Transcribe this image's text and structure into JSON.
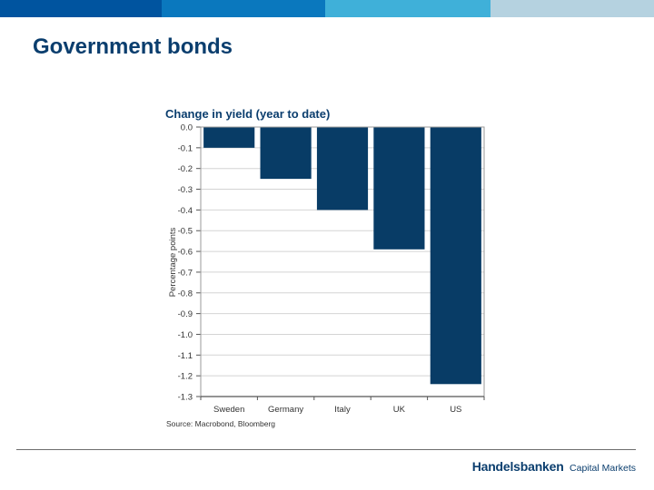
{
  "slide": {
    "title": "Government bonds",
    "header_bar_colors": [
      "#00549f",
      "#0a78be",
      "#3fb0d9",
      "#b5d2e0"
    ]
  },
  "chart_data": {
    "type": "bar",
    "title": "Change in yield (year to date)",
    "ylabel": "Percentage points",
    "xlabel": "",
    "categories": [
      "Sweden",
      "Germany",
      "Italy",
      "UK",
      "US"
    ],
    "values": [
      -0.1,
      -0.25,
      -0.4,
      -0.59,
      -1.24
    ],
    "ylim": [
      -1.3,
      0.0
    ],
    "yticks": [
      "0.0",
      "-0.1",
      "-0.2",
      "-0.3",
      "-0.4",
      "-0.5",
      "-0.6",
      "-0.7",
      "-0.8",
      "-0.9",
      "-1.0",
      "-1.1",
      "-1.2",
      "-1.3"
    ],
    "grid": true,
    "bar_color": "#083c66",
    "source": "Source: Macrobond, Bloomberg"
  },
  "footer": {
    "brand_main": "Handelsbanken",
    "brand_sub": "Capital Markets"
  }
}
